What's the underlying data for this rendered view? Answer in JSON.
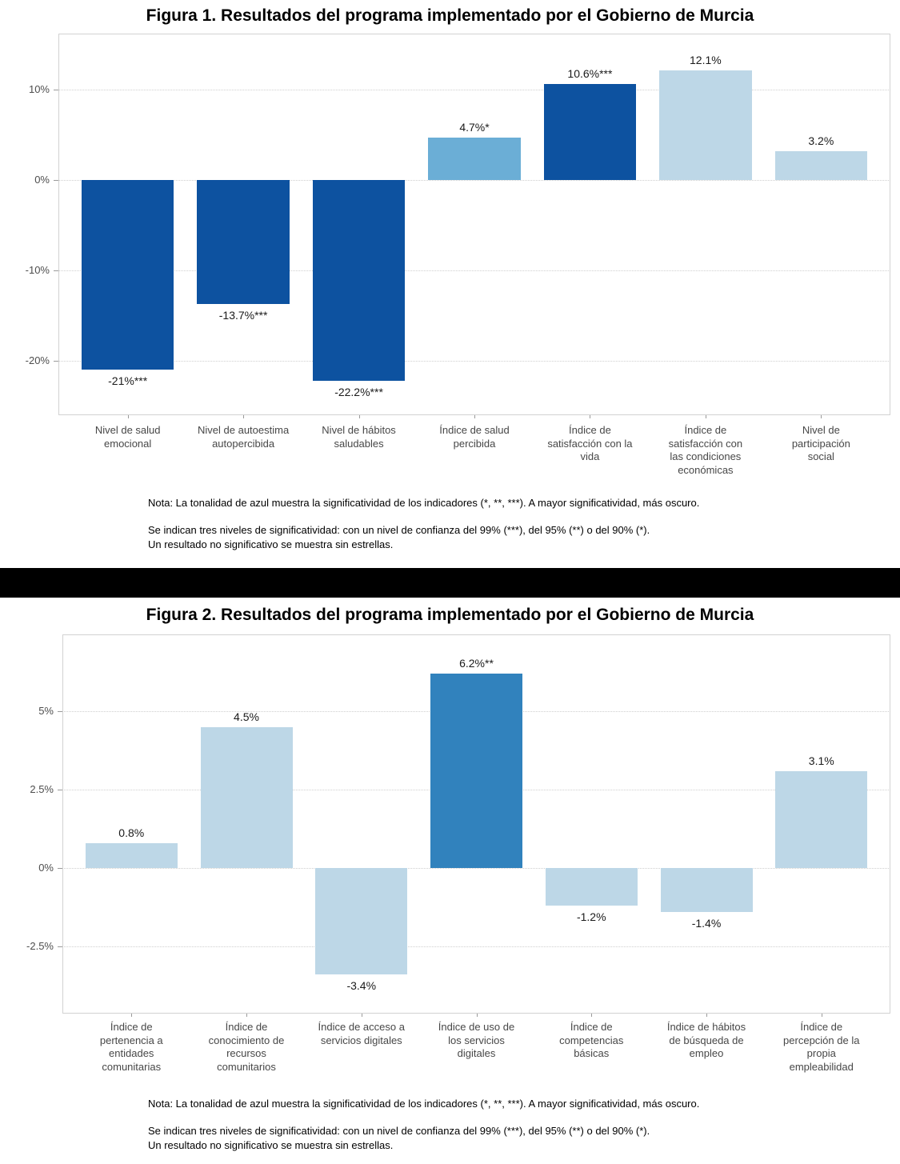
{
  "colors": {
    "significance_99_dark_blue": "#0D52A0",
    "significance_95_medium_blue": "#3182BD",
    "significance_90_light_medium_blue": "#6BAED6",
    "not_significant_pale_blue": "#BDD7E7",
    "separator_band": "#000000",
    "gridline": "#cfcfcf",
    "axis_text": "#4d4d4d"
  },
  "significance_color_map": {
    "***": "#0D52A0",
    "**": "#3182BD",
    "*": "#6BAED6",
    "none": "#BDD7E7"
  },
  "notes": {
    "line1": "Nota: La tonalidad de azul muestra la significatividad de los indicadores (*, **, ***). A mayor significatividad, más oscuro.",
    "block2": "Se indican tres niveles de significatividad: con un nivel de confianza del 99% (***), del 95% (**) o del 90% (*).\nUn resultado no significativo se muestra sin estrellas."
  },
  "chart_data": [
    {
      "type": "bar",
      "title": "Figura 1. Resultados del programa implementado por el Gobierno de Murcia",
      "categories": [
        "Nivel de salud\nemocional",
        "Nivel de autoestima\nautopercibida",
        "Nivel de hábitos\nsaludables",
        "Índice de salud\npercibida",
        "Índice de\nsatisfacción con la\nvida",
        "Índice de\nsatisfacción con\nlas condiciones\neconómicas",
        "Nivel de\nparticipación\nsocial"
      ],
      "values": [
        -21,
        -13.7,
        -22.2,
        4.7,
        10.6,
        12.1,
        3.2
      ],
      "bar_labels": [
        "-21%***",
        "-13.7%***",
        "-22.2%***",
        "4.7%*",
        "10.6%***",
        "12.1%",
        "3.2%"
      ],
      "significance": [
        "***",
        "***",
        "***",
        "*",
        "***",
        "none",
        "none"
      ],
      "yticks": [
        10,
        0,
        -10,
        -20
      ],
      "ytick_labels": [
        "10%",
        "0%",
        "-10%",
        "-20%"
      ],
      "ylim": [
        -26,
        16.2
      ],
      "xlabel": "",
      "ylabel": "",
      "grid": "horizontal-dotted",
      "legend": "none"
    },
    {
      "type": "bar",
      "title": "Figura 2. Resultados del programa implementado por el Gobierno de Murcia",
      "categories": [
        "Índice de\npertenencia a\nentidades\ncomunitarias",
        "Índice de\nconocimiento de\nrecursos\ncomunitarios",
        "Índice de acceso a\nservicios digitales",
        "Índice de uso de\nlos servicios\ndigitales",
        "Índice de\ncompetencias\nbásicas",
        "Índice de hábitos\nde búsqueda de\nempleo",
        "Índice de\npercepción de la\npropia\nempleabilidad"
      ],
      "values": [
        0.8,
        4.5,
        -3.4,
        6.2,
        -1.2,
        -1.4,
        3.1
      ],
      "bar_labels": [
        "0.8%",
        "4.5%",
        "-3.4%",
        "6.2%**",
        "-1.2%",
        "-1.4%",
        "3.1%"
      ],
      "significance": [
        "none",
        "none",
        "none",
        "**",
        "none",
        "none",
        "none"
      ],
      "yticks": [
        5,
        2.5,
        0,
        -2.5
      ],
      "ytick_labels": [
        "5%",
        "2.5%",
        "0%",
        "-2.5%"
      ],
      "ylim": [
        -4.64,
        7.45
      ],
      "xlabel": "",
      "ylabel": "",
      "grid": "horizontal-dotted",
      "legend": "none"
    }
  ]
}
